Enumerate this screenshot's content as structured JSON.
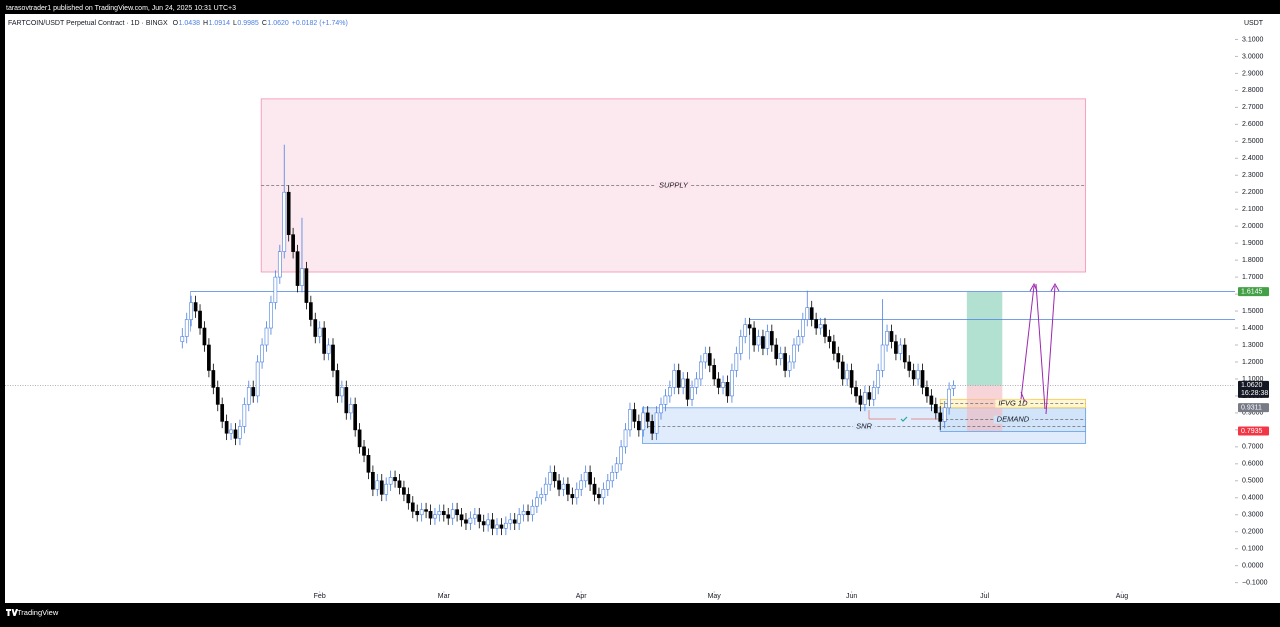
{
  "header": {
    "byline": "tarasovtrader1 published on TradingView.com, Jun 24, 2025 10:31 UTC+3",
    "brand": "TradingView"
  },
  "chart_data": {
    "type": "candlestick",
    "title": "FARTCOIN/USDT Perpetual Contract · 1D · BINGX",
    "ohlc_legend": [
      {
        "key": "O",
        "value": "1.0438"
      },
      {
        "key": "H",
        "value": "1.0914"
      },
      {
        "key": "L",
        "value": "0.9985"
      },
      {
        "key": "C",
        "value": "1.0620"
      }
    ],
    "change": "+0.0182 (+1.74%)",
    "currency": "USDT",
    "up_color": "#4a7fe0",
    "down_color": "#000000",
    "candles": [
      [
        1.32,
        1.4,
        1.28,
        1.35
      ],
      [
        1.35,
        1.49,
        1.31,
        1.45
      ],
      [
        1.45,
        1.59,
        1.41,
        1.55
      ],
      [
        1.55,
        1.59,
        1.46,
        1.5
      ],
      [
        1.5,
        1.54,
        1.36,
        1.4
      ],
      [
        1.4,
        1.44,
        1.26,
        1.3
      ],
      [
        1.3,
        1.34,
        1.11,
        1.15
      ],
      [
        1.15,
        1.19,
        1.01,
        1.05
      ],
      [
        1.05,
        1.09,
        0.91,
        0.95
      ],
      [
        0.95,
        0.99,
        0.81,
        0.85
      ],
      [
        0.85,
        0.89,
        0.74,
        0.78
      ],
      [
        0.78,
        0.84,
        0.74,
        0.8
      ],
      [
        0.8,
        0.84,
        0.71,
        0.75
      ],
      [
        0.75,
        0.86,
        0.71,
        0.82
      ],
      [
        0.82,
        0.99,
        0.78,
        0.95
      ],
      [
        0.95,
        1.09,
        0.91,
        1.05
      ],
      [
        1.05,
        1.09,
        0.96,
        1.0
      ],
      [
        1.0,
        1.24,
        0.96,
        1.2
      ],
      [
        1.2,
        1.34,
        1.16,
        1.3
      ],
      [
        1.3,
        1.44,
        1.26,
        1.4
      ],
      [
        1.4,
        1.59,
        1.36,
        1.55
      ],
      [
        1.55,
        1.74,
        1.51,
        1.7
      ],
      [
        1.7,
        1.89,
        1.66,
        1.85
      ],
      [
        1.85,
        2.48,
        1.81,
        2.2
      ],
      [
        2.2,
        2.24,
        1.91,
        1.95
      ],
      [
        1.95,
        1.99,
        1.81,
        1.85
      ],
      [
        1.85,
        1.89,
        1.61,
        1.65
      ],
      [
        1.65,
        2.05,
        1.61,
        1.75
      ],
      [
        1.75,
        1.79,
        1.51,
        1.55
      ],
      [
        1.55,
        1.59,
        1.41,
        1.45
      ],
      [
        1.45,
        1.49,
        1.31,
        1.35
      ],
      [
        1.35,
        1.44,
        1.31,
        1.4
      ],
      [
        1.4,
        1.44,
        1.21,
        1.25
      ],
      [
        1.25,
        1.34,
        1.21,
        1.3
      ],
      [
        1.3,
        1.34,
        1.11,
        1.15
      ],
      [
        1.15,
        1.19,
        0.96,
        1.0
      ],
      [
        1.0,
        1.09,
        0.96,
        1.05
      ],
      [
        1.05,
        1.09,
        0.86,
        0.9
      ],
      [
        0.9,
        0.99,
        0.86,
        0.95
      ],
      [
        0.95,
        0.99,
        0.76,
        0.8
      ],
      [
        0.8,
        0.84,
        0.66,
        0.7
      ],
      [
        0.7,
        0.74,
        0.61,
        0.65
      ],
      [
        0.65,
        0.69,
        0.51,
        0.55
      ],
      [
        0.55,
        0.59,
        0.41,
        0.45
      ],
      [
        0.45,
        0.54,
        0.41,
        0.5
      ],
      [
        0.5,
        0.54,
        0.38,
        0.42
      ],
      [
        0.42,
        0.52,
        0.38,
        0.48
      ],
      [
        0.48,
        0.56,
        0.44,
        0.52
      ],
      [
        0.52,
        0.56,
        0.46,
        0.5
      ],
      [
        0.5,
        0.54,
        0.42,
        0.46
      ],
      [
        0.46,
        0.5,
        0.38,
        0.42
      ],
      [
        0.42,
        0.46,
        0.33,
        0.37
      ],
      [
        0.37,
        0.41,
        0.28,
        0.32
      ],
      [
        0.32,
        0.36,
        0.26,
        0.3
      ],
      [
        0.3,
        0.37,
        0.26,
        0.33
      ],
      [
        0.33,
        0.37,
        0.28,
        0.32
      ],
      [
        0.32,
        0.36,
        0.24,
        0.28
      ],
      [
        0.28,
        0.34,
        0.24,
        0.3
      ],
      [
        0.3,
        0.36,
        0.26,
        0.32
      ],
      [
        0.32,
        0.36,
        0.26,
        0.3
      ],
      [
        0.3,
        0.34,
        0.24,
        0.28
      ],
      [
        0.28,
        0.37,
        0.24,
        0.33
      ],
      [
        0.33,
        0.37,
        0.26,
        0.3
      ],
      [
        0.3,
        0.34,
        0.23,
        0.27
      ],
      [
        0.27,
        0.31,
        0.21,
        0.25
      ],
      [
        0.25,
        0.32,
        0.21,
        0.28
      ],
      [
        0.28,
        0.34,
        0.24,
        0.3
      ],
      [
        0.3,
        0.34,
        0.22,
        0.26
      ],
      [
        0.26,
        0.3,
        0.2,
        0.24
      ],
      [
        0.24,
        0.31,
        0.2,
        0.27
      ],
      [
        0.27,
        0.31,
        0.18,
        0.22
      ],
      [
        0.22,
        0.28,
        0.18,
        0.24
      ],
      [
        0.24,
        0.28,
        0.18,
        0.22
      ],
      [
        0.22,
        0.29,
        0.18,
        0.25
      ],
      [
        0.25,
        0.31,
        0.21,
        0.27
      ],
      [
        0.27,
        0.31,
        0.21,
        0.25
      ],
      [
        0.25,
        0.34,
        0.21,
        0.3
      ],
      [
        0.3,
        0.36,
        0.26,
        0.32
      ],
      [
        0.32,
        0.36,
        0.26,
        0.3
      ],
      [
        0.3,
        0.39,
        0.26,
        0.35
      ],
      [
        0.35,
        0.44,
        0.31,
        0.4
      ],
      [
        0.4,
        0.46,
        0.36,
        0.42
      ],
      [
        0.42,
        0.52,
        0.38,
        0.48
      ],
      [
        0.48,
        0.59,
        0.44,
        0.55
      ],
      [
        0.55,
        0.59,
        0.46,
        0.5
      ],
      [
        0.5,
        0.54,
        0.41,
        0.45
      ],
      [
        0.45,
        0.52,
        0.41,
        0.48
      ],
      [
        0.48,
        0.52,
        0.38,
        0.42
      ],
      [
        0.42,
        0.46,
        0.36,
        0.4
      ],
      [
        0.4,
        0.49,
        0.36,
        0.45
      ],
      [
        0.45,
        0.54,
        0.41,
        0.5
      ],
      [
        0.5,
        0.59,
        0.46,
        0.55
      ],
      [
        0.55,
        0.59,
        0.44,
        0.48
      ],
      [
        0.48,
        0.52,
        0.38,
        0.42
      ],
      [
        0.42,
        0.46,
        0.36,
        0.4
      ],
      [
        0.4,
        0.49,
        0.36,
        0.45
      ],
      [
        0.45,
        0.54,
        0.41,
        0.5
      ],
      [
        0.5,
        0.59,
        0.46,
        0.55
      ],
      [
        0.55,
        0.64,
        0.51,
        0.6
      ],
      [
        0.6,
        0.74,
        0.56,
        0.7
      ],
      [
        0.7,
        0.84,
        0.66,
        0.8
      ],
      [
        0.8,
        0.96,
        0.76,
        0.92
      ],
      [
        0.92,
        0.96,
        0.81,
        0.85
      ],
      [
        0.85,
        0.89,
        0.76,
        0.8
      ],
      [
        0.8,
        0.94,
        0.76,
        0.9
      ],
      [
        0.9,
        0.94,
        0.81,
        0.85
      ],
      [
        0.85,
        0.89,
        0.74,
        0.78
      ],
      [
        0.78,
        0.94,
        0.74,
        0.9
      ],
      [
        0.9,
        0.99,
        0.86,
        0.95
      ],
      [
        0.95,
        1.04,
        0.91,
        1.0
      ],
      [
        1.0,
        1.09,
        0.96,
        1.05
      ],
      [
        1.05,
        1.19,
        1.01,
        1.15
      ],
      [
        1.15,
        1.19,
        1.01,
        1.05
      ],
      [
        1.05,
        1.14,
        1.01,
        1.1
      ],
      [
        1.1,
        1.14,
        0.94,
        0.98
      ],
      [
        0.98,
        1.09,
        0.94,
        1.05
      ],
      [
        1.05,
        1.14,
        1.01,
        1.1
      ],
      [
        1.1,
        1.24,
        1.06,
        1.2
      ],
      [
        1.2,
        1.29,
        1.16,
        1.25
      ],
      [
        1.25,
        1.29,
        1.14,
        1.18
      ],
      [
        1.18,
        1.22,
        1.06,
        1.1
      ],
      [
        1.1,
        1.14,
        1.01,
        1.05
      ],
      [
        1.05,
        1.12,
        1.01,
        1.08
      ],
      [
        1.08,
        1.12,
        0.96,
        1.0
      ],
      [
        1.0,
        1.19,
        0.96,
        1.15
      ],
      [
        1.15,
        1.29,
        1.11,
        1.25
      ],
      [
        1.25,
        1.39,
        1.21,
        1.35
      ],
      [
        1.35,
        1.46,
        1.31,
        1.42
      ],
      [
        1.42,
        1.46,
        1.36,
        1.4
      ],
      [
        1.4,
        1.44,
        1.26,
        1.3
      ],
      [
        1.3,
        1.39,
        1.26,
        1.35
      ],
      [
        1.35,
        1.39,
        1.24,
        1.28
      ],
      [
        1.28,
        1.42,
        1.24,
        1.38
      ],
      [
        1.38,
        1.42,
        1.26,
        1.3
      ],
      [
        1.3,
        1.34,
        1.18,
        1.22
      ],
      [
        1.22,
        1.29,
        1.18,
        1.25
      ],
      [
        1.25,
        1.29,
        1.11,
        1.15
      ],
      [
        1.15,
        1.24,
        1.11,
        1.2
      ],
      [
        1.2,
        1.34,
        1.16,
        1.3
      ],
      [
        1.3,
        1.39,
        1.26,
        1.35
      ],
      [
        1.35,
        1.49,
        1.31,
        1.45
      ],
      [
        1.45,
        1.62,
        1.41,
        1.52
      ],
      [
        1.52,
        1.56,
        1.41,
        1.45
      ],
      [
        1.45,
        1.49,
        1.36,
        1.4
      ],
      [
        1.4,
        1.46,
        1.36,
        1.42
      ],
      [
        1.42,
        1.46,
        1.31,
        1.35
      ],
      [
        1.35,
        1.39,
        1.28,
        1.32
      ],
      [
        1.32,
        1.36,
        1.21,
        1.25
      ],
      [
        1.25,
        1.29,
        1.16,
        1.2
      ],
      [
        1.2,
        1.24,
        1.06,
        1.1
      ],
      [
        1.1,
        1.19,
        1.06,
        1.15
      ],
      [
        1.15,
        1.19,
        1.01,
        1.05
      ],
      [
        1.05,
        1.09,
        0.96,
        1.0
      ],
      [
        1.0,
        1.04,
        0.91,
        0.95
      ],
      [
        0.95,
        1.06,
        0.91,
        1.02
      ],
      [
        1.02,
        1.06,
        0.94,
        0.98
      ],
      [
        0.98,
        1.09,
        0.94,
        1.05
      ],
      [
        1.05,
        1.19,
        1.01,
        1.15
      ],
      [
        1.15,
        1.57,
        1.11,
        1.3
      ],
      [
        1.3,
        1.42,
        1.26,
        1.38
      ],
      [
        1.38,
        1.42,
        1.28,
        1.32
      ],
      [
        1.32,
        1.36,
        1.21,
        1.25
      ],
      [
        1.25,
        1.34,
        1.21,
        1.3
      ],
      [
        1.3,
        1.34,
        1.16,
        1.2
      ],
      [
        1.2,
        1.24,
        1.11,
        1.15
      ],
      [
        1.15,
        1.19,
        1.06,
        1.1
      ],
      [
        1.1,
        1.19,
        1.06,
        1.15
      ],
      [
        1.15,
        1.19,
        1.01,
        1.05
      ],
      [
        1.05,
        1.09,
        0.96,
        1.0
      ],
      [
        1.0,
        1.04,
        0.91,
        0.95
      ],
      [
        0.95,
        0.99,
        0.86,
        0.9
      ],
      [
        0.9,
        0.94,
        0.8,
        0.85
      ],
      [
        0.85,
        0.97,
        0.81,
        0.93
      ],
      [
        0.93,
        1.08,
        0.89,
        1.04
      ],
      [
        1.0438,
        1.0914,
        0.9985,
        1.062
      ]
    ],
    "xlim": [
      -40,
      237.5
    ],
    "xticks": [
      {
        "value": 31,
        "label": "Feb"
      },
      {
        "value": 59,
        "label": "Mar"
      },
      {
        "value": 90,
        "label": "Apr"
      },
      {
        "value": 120,
        "label": "May"
      },
      {
        "value": 151,
        "label": "Jun"
      },
      {
        "value": 181,
        "label": "Jul"
      },
      {
        "value": 212,
        "label": "Aug"
      }
    ],
    "ylim": [
      -0.22,
      3.25
    ],
    "yticks": [
      {
        "value": 3.1,
        "label": "3.1000"
      },
      {
        "value": 3.0,
        "label": "3.0000"
      },
      {
        "value": 2.9,
        "label": "2.9000"
      },
      {
        "value": 2.8,
        "label": "2.8000"
      },
      {
        "value": 2.7,
        "label": "2.7000"
      },
      {
        "value": 2.6,
        "label": "2.6000"
      },
      {
        "value": 2.5,
        "label": "2.5000"
      },
      {
        "value": 2.4,
        "label": "2.4000"
      },
      {
        "value": 2.3,
        "label": "2.3000"
      },
      {
        "value": 2.2,
        "label": "2.2000"
      },
      {
        "value": 2.1,
        "label": "2.1000"
      },
      {
        "value": 2.0,
        "label": "2.0000"
      },
      {
        "value": 1.9,
        "label": "1.9000"
      },
      {
        "value": 1.8,
        "label": "1.8000"
      },
      {
        "value": 1.7,
        "label": "1.7000"
      },
      {
        "value": 1.6,
        "label": "1.6000"
      },
      {
        "value": 1.5,
        "label": "1.5000"
      },
      {
        "value": 1.4,
        "label": "1.4000"
      },
      {
        "value": 1.3,
        "label": "1.3000"
      },
      {
        "value": 1.2,
        "label": "1.2000"
      },
      {
        "value": 1.1,
        "label": "1.1000"
      },
      {
        "value": 1.0,
        "label": "1.0000"
      },
      {
        "value": 0.9,
        "label": "0.9000"
      },
      {
        "value": 0.8,
        "label": "0.8000"
      },
      {
        "value": 0.7,
        "label": "0.7000"
      },
      {
        "value": 0.6,
        "label": "0.6000"
      },
      {
        "value": 0.5,
        "label": "0.5000"
      },
      {
        "value": 0.4,
        "label": "0.4000"
      },
      {
        "value": 0.3,
        "label": "0.3000"
      },
      {
        "value": 0.2,
        "label": "0.2000"
      },
      {
        "value": 0.1,
        "label": "0.1000"
      },
      {
        "value": 0,
        "label": "0.0000"
      },
      {
        "value": -0.1,
        "label": "−0.1000"
      }
    ],
    "zones": [
      {
        "label": "SUPPLY",
        "top": 2.75,
        "bottom": 1.73,
        "mid": 2.24,
        "from": 17.8,
        "to": 203.8,
        "color": "#fce4ec",
        "border": "#f48fb1"
      },
      {
        "label": "SNR",
        "top": 0.93,
        "bottom": 0.72,
        "mid": 0.82,
        "from": 103.8,
        "to": 203.8,
        "color": "#dbe9fb",
        "border": "#64a0e8"
      },
      {
        "label": "DEMAND",
        "top": 0.93,
        "bottom": 0.79,
        "mid": 0.86,
        "from": 171,
        "to": 203.8,
        "color": "#cfe3f8",
        "border": "#64a0e8"
      },
      {
        "label": "IFVG 1D",
        "top": 0.98,
        "bottom": 0.93,
        "mid": 0.955,
        "from": 171,
        "to": 203.8,
        "color": "#fff5cc",
        "border": "#f2c94c"
      }
    ],
    "levels": [
      {
        "price": 1.6145,
        "from": 1.8,
        "color": "#4a7fe0"
      },
      {
        "price": 1.45,
        "from": 128,
        "color": "#4a7fe0"
      },
      {
        "price": 1.062,
        "from": -40,
        "color": "#9598a1"
      }
    ],
    "projection": {
      "target": 1.6145,
      "entry": 1.062,
      "stop": 0.7935,
      "from": 177,
      "to": 185,
      "profit_color": "#a5dbc9",
      "loss_color": "#f2b8bd"
    },
    "price_labels": [
      {
        "value": 1.6145,
        "label": "1.6145",
        "color": "#43a047"
      },
      {
        "value": 1.062,
        "label": "1.0620",
        "sub": "16:28:38",
        "color": "#131722"
      },
      {
        "value": 0.9311,
        "label": "0.9311",
        "color": "#787b86"
      },
      {
        "value": 0.7935,
        "label": "0.7935",
        "color": "#f23645"
      }
    ]
  }
}
